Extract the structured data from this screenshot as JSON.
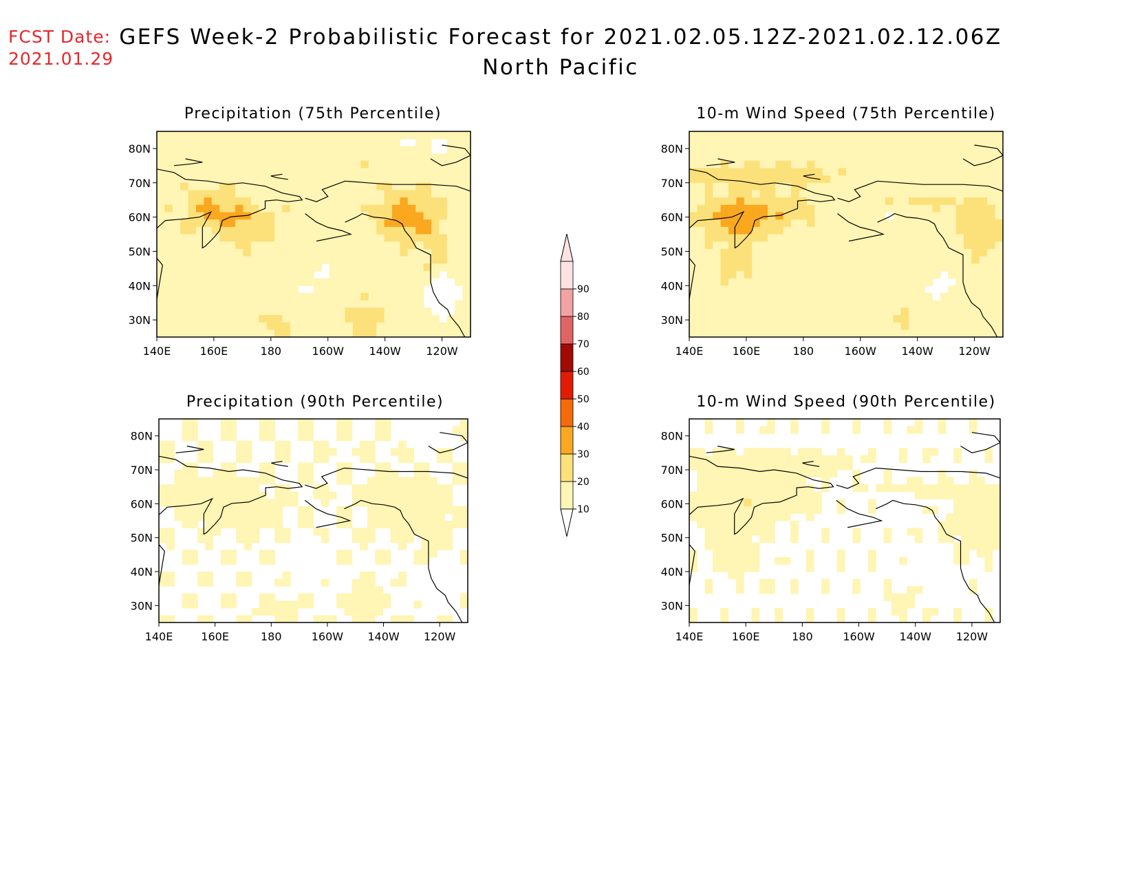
{
  "header": {
    "fcst_label": "FCST Date:",
    "fcst_date": "2021.01.29",
    "title": "GEFS Week-2 Probabilistic Forecast for 2021.02.05.12Z-2021.02.12.06Z",
    "region": "North Pacific"
  },
  "axes": {
    "lat_labels": [
      "80N",
      "70N",
      "60N",
      "50N",
      "40N",
      "30N"
    ],
    "lon_labels": [
      "140E",
      "160E",
      "180",
      "160W",
      "140W",
      "120W"
    ]
  },
  "panels": [
    {
      "id": "precip75",
      "title": "Precipitation (75th Percentile)",
      "intensity": 1.0,
      "field": "precip"
    },
    {
      "id": "wind75",
      "title": "10-m Wind Speed (75th Percentile)",
      "intensity": 1.0,
      "field": "wind"
    },
    {
      "id": "precip90",
      "title": "Precipitation (90th Percentile)",
      "intensity": 0.45,
      "field": "precip"
    },
    {
      "id": "wind90",
      "title": "10-m Wind Speed (90th Percentile)",
      "intensity": 0.45,
      "field": "wind"
    }
  ],
  "colorbar": {
    "levels": [
      "10",
      "20",
      "30",
      "40",
      "50",
      "60",
      "70",
      "80",
      "90"
    ],
    "colors": [
      "#fff5b4",
      "#fce07a",
      "#f9a81f",
      "#f56a0a",
      "#e21b05",
      "#a20a06",
      "#e06464",
      "#f2a2a2",
      "#fde2e4"
    ]
  },
  "map_extent": {
    "lon": [
      140,
      250
    ],
    "lat": [
      25,
      85
    ]
  }
}
